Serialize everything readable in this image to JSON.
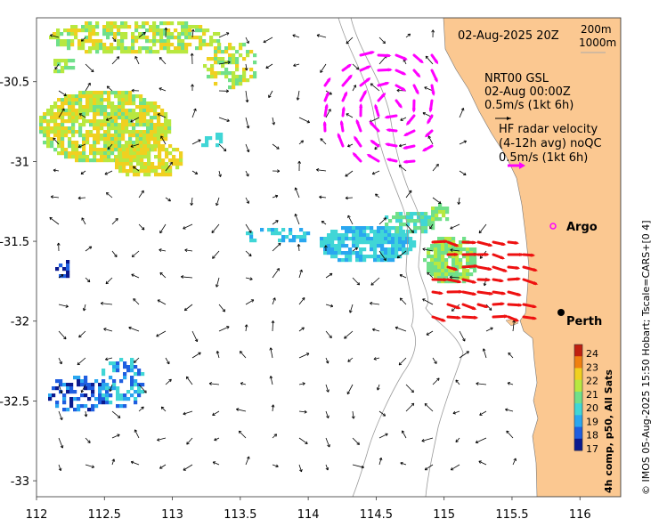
{
  "map": {
    "date_label": "02-Aug-2025 20Z",
    "isobath_labels": [
      "200m",
      "1000m"
    ],
    "model_title": "NRT00 GSL",
    "model_time": "02-Aug 00:00Z",
    "model_scale": "0.5m/s (1kt 6h)",
    "hf_title": "HF radar velocity",
    "hf_subtitle": "(4-12h avg) noQC",
    "hf_scale": "0.5m/s (1kt 6h)",
    "places": [
      {
        "name": "Argo",
        "lon": 115.78,
        "lat": -31.45
      },
      {
        "name": "Perth",
        "lon": 115.86,
        "lat": -31.95
      }
    ],
    "colorbar_label": "4h comp, p50, All Sats",
    "colorbar_ticks": [
      "24",
      "23",
      "22",
      "21",
      "20",
      "19",
      "18",
      "17"
    ],
    "credit": "© IMOS 05-Aug-2025 15:50 Hobart; Tscale=CARS+[0 4]",
    "x_ticks": [
      "112",
      "112.5",
      "113",
      "113.5",
      "114",
      "114.5",
      "115",
      "115.5",
      "116"
    ],
    "y_ticks": [
      "-30.5",
      "-31",
      "-31.5",
      "-32",
      "-32.5",
      "-33"
    ],
    "extent": {
      "lon_min": 112.0,
      "lon_max": 116.3,
      "lat_max": -30.1,
      "lat_min": -33.1
    },
    "colors": {
      "land": "#fbc891",
      "hf_arrow_north": "#ff00ff",
      "hf_arrow_south": "#ee1111",
      "model_arrow": "#000000",
      "isobath": "#9a9a9a",
      "colorbar": [
        "#0b1a8f",
        "#1f5ee0",
        "#2aa7f0",
        "#40d6d6",
        "#70e08a",
        "#b8e840",
        "#f0d020",
        "#f08010",
        "#c02010"
      ]
    }
  }
}
